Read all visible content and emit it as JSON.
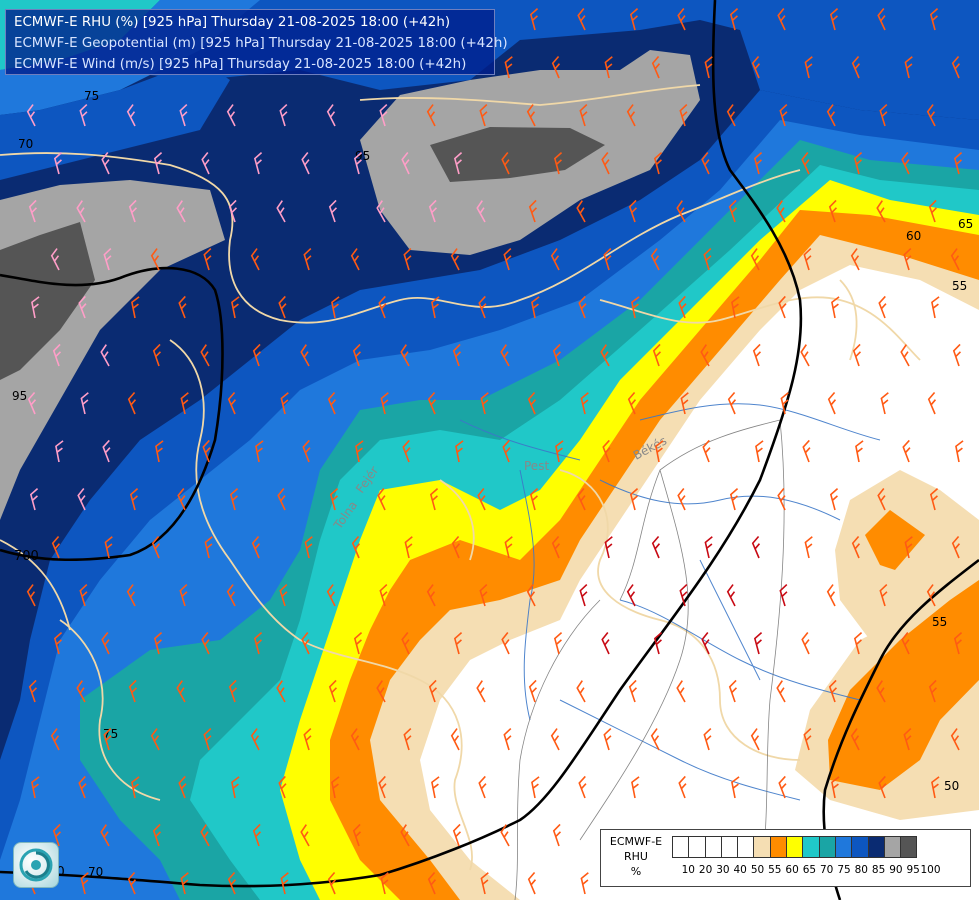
{
  "header": {
    "line1": "ECMWF-E RHU (%) [925 hPa] Thursday 21-08-2025 18:00 (+42h)",
    "line2": "ECMWF-E Geopotential (m) [925 hPa] Thursday 21-08-2025 18:00 (+42h)",
    "line3": "ECMWF-E Wind (m/s) [925 hPa] Thursday 21-08-2025 18:00 (+42h)"
  },
  "legend": {
    "title_line1": "ECMWF-E",
    "title_line2": "RHU",
    "unit": "%",
    "ticks": [
      "10",
      "20",
      "30",
      "40",
      "50",
      "55",
      "60",
      "65",
      "70",
      "75",
      "80",
      "85",
      "90",
      "95",
      "100"
    ],
    "colors": [
      "#ffffff",
      "#ffffff",
      "#ffffff",
      "#ffffff",
      "#ffffff",
      "#f5deb3",
      "#ff8c00",
      "#ffff00",
      "#20c8c8",
      "#1aa5a5",
      "#1f78dc",
      "#0d56c0",
      "#0a2b72",
      "#a5a5a5",
      "#555555"
    ]
  },
  "map_labels": {
    "rhu_labels": [
      "75",
      "70",
      "95",
      "95",
      "75",
      "70",
      "60",
      "65",
      "55",
      "55",
      "50"
    ],
    "geopotential_labels": [
      "700",
      "700"
    ],
    "place_labels": [
      "Pest",
      "Békés",
      "Tolna",
      "Fejér"
    ]
  },
  "palette": {
    "rhu_100": "#555555",
    "rhu_95": "#a5a5a5",
    "rhu_90": "#0a2b72",
    "rhu_85": "#0d56c0",
    "rhu_80": "#1f78dc",
    "rhu_75": "#1aa5a5",
    "rhu_70": "#20c8c8",
    "rhu_65": "#ffff00",
    "rhu_60": "#ff8c00",
    "rhu_55": "#f5deb3",
    "rhu_below": "#ffffff",
    "borders": "#f0d8a8",
    "rivers": "#3c78c8",
    "wind_low": "#ff9ec8",
    "wind_mid": "#ff5a14",
    "wind_high": "#c80a14"
  }
}
